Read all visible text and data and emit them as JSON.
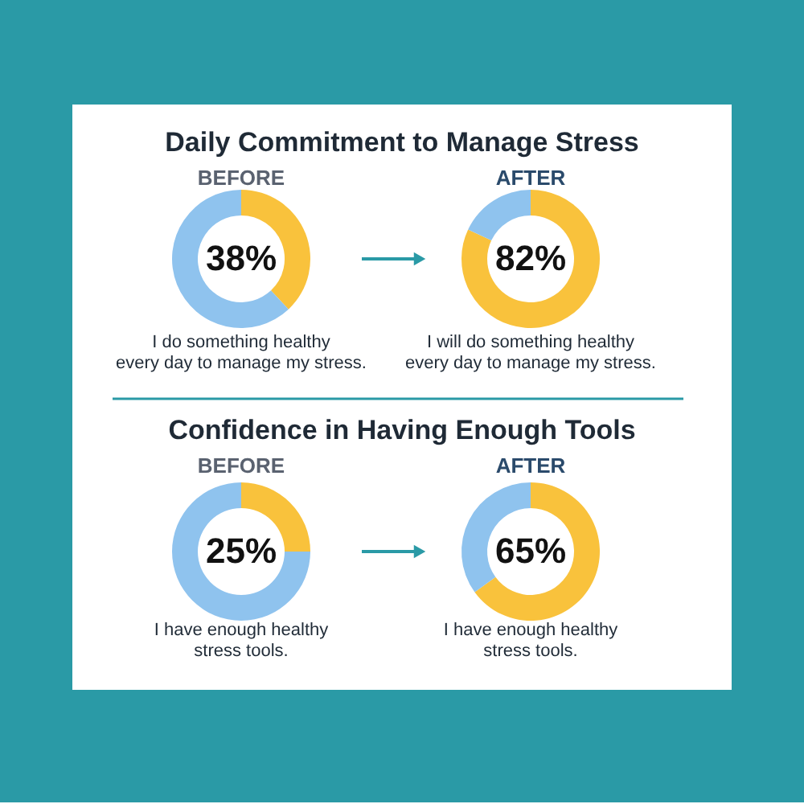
{
  "chart_data": [
    {
      "type": "donut",
      "title": "Daily Commitment to Manage Stress",
      "subtitle": "BEFORE",
      "categories": [
        null,
        null
      ],
      "values": [
        38,
        62
      ],
      "colors": [
        "#f9c23c",
        "#8fc3ee"
      ],
      "value_labels": [
        "38%",
        null
      ],
      "annotations": [
        "I do something healthy\nevery day to manage my stress."
      ]
    },
    {
      "type": "donut",
      "subtitle": "AFTER",
      "categories": [
        null,
        null
      ],
      "values": [
        82,
        18
      ],
      "colors": [
        "#f9c23c",
        "#8fc3ee"
      ],
      "value_labels": [
        "82%",
        null
      ],
      "annotations": [
        "I will do something healthy\nevery day to manage my stress."
      ]
    },
    {
      "type": "donut",
      "title": "Confidence in Having Enough Tools",
      "subtitle": "BEFORE",
      "categories": [
        null,
        null
      ],
      "values": [
        25,
        75
      ],
      "colors": [
        "#f9c23c",
        "#8fc3ee"
      ],
      "value_labels": [
        "25%",
        null
      ],
      "annotations": [
        "I have enough healthy\nstress tools."
      ]
    },
    {
      "type": "donut",
      "subtitle": "AFTER",
      "categories": [
        null,
        null
      ],
      "values": [
        65,
        35
      ],
      "colors": [
        "#f9c23c",
        "#8fc3ee"
      ],
      "value_labels": [
        "65%",
        null
      ],
      "annotations": [
        "I have enough healthy\nstress tools."
      ]
    }
  ]
}
